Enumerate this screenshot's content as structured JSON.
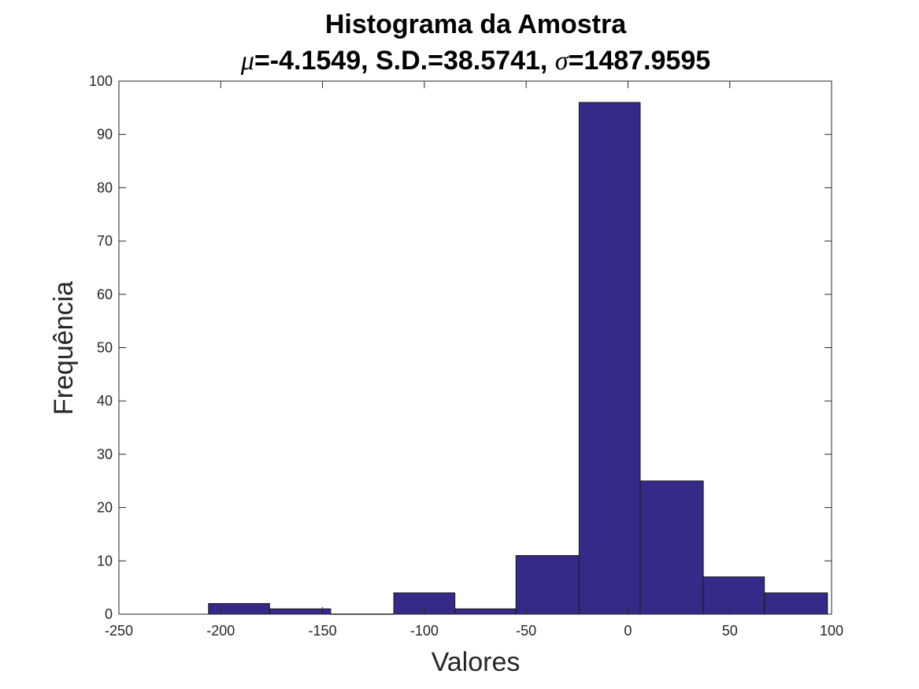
{
  "chart_data": {
    "type": "bar",
    "title": "Histograma da Amostra",
    "subtitle": {
      "mu_symbol": "μ",
      "mu_text": "=-4.1549, S.D.=38.5741, ",
      "sigma_symbol": "σ",
      "sigma_text": "=1487.9595"
    },
    "xlabel": "Valores",
    "ylabel": "Frequência",
    "xlim": [
      -250,
      100
    ],
    "ylim": [
      0,
      100
    ],
    "xticks": [
      -250,
      -200,
      -150,
      -100,
      -50,
      0,
      50,
      100
    ],
    "yticks": [
      0,
      10,
      20,
      30,
      40,
      50,
      60,
      70,
      80,
      90,
      100
    ],
    "bins": [
      {
        "x0": -206,
        "x1": -176,
        "count": 2
      },
      {
        "x0": -176,
        "x1": -146,
        "count": 1
      },
      {
        "x0": -146,
        "x1": -115,
        "count": 0
      },
      {
        "x0": -115,
        "x1": -85,
        "count": 4
      },
      {
        "x0": -85,
        "x1": -55,
        "count": 1
      },
      {
        "x0": -55,
        "x1": -24,
        "count": 11
      },
      {
        "x0": -24,
        "x1": 6,
        "count": 96
      },
      {
        "x0": 6,
        "x1": 37,
        "count": 25
      },
      {
        "x0": 37,
        "x1": 67,
        "count": 7
      },
      {
        "x0": 67,
        "x1": 98,
        "count": 4
      }
    ],
    "bar_color": "#352a87",
    "grid": false,
    "legend": "none"
  }
}
